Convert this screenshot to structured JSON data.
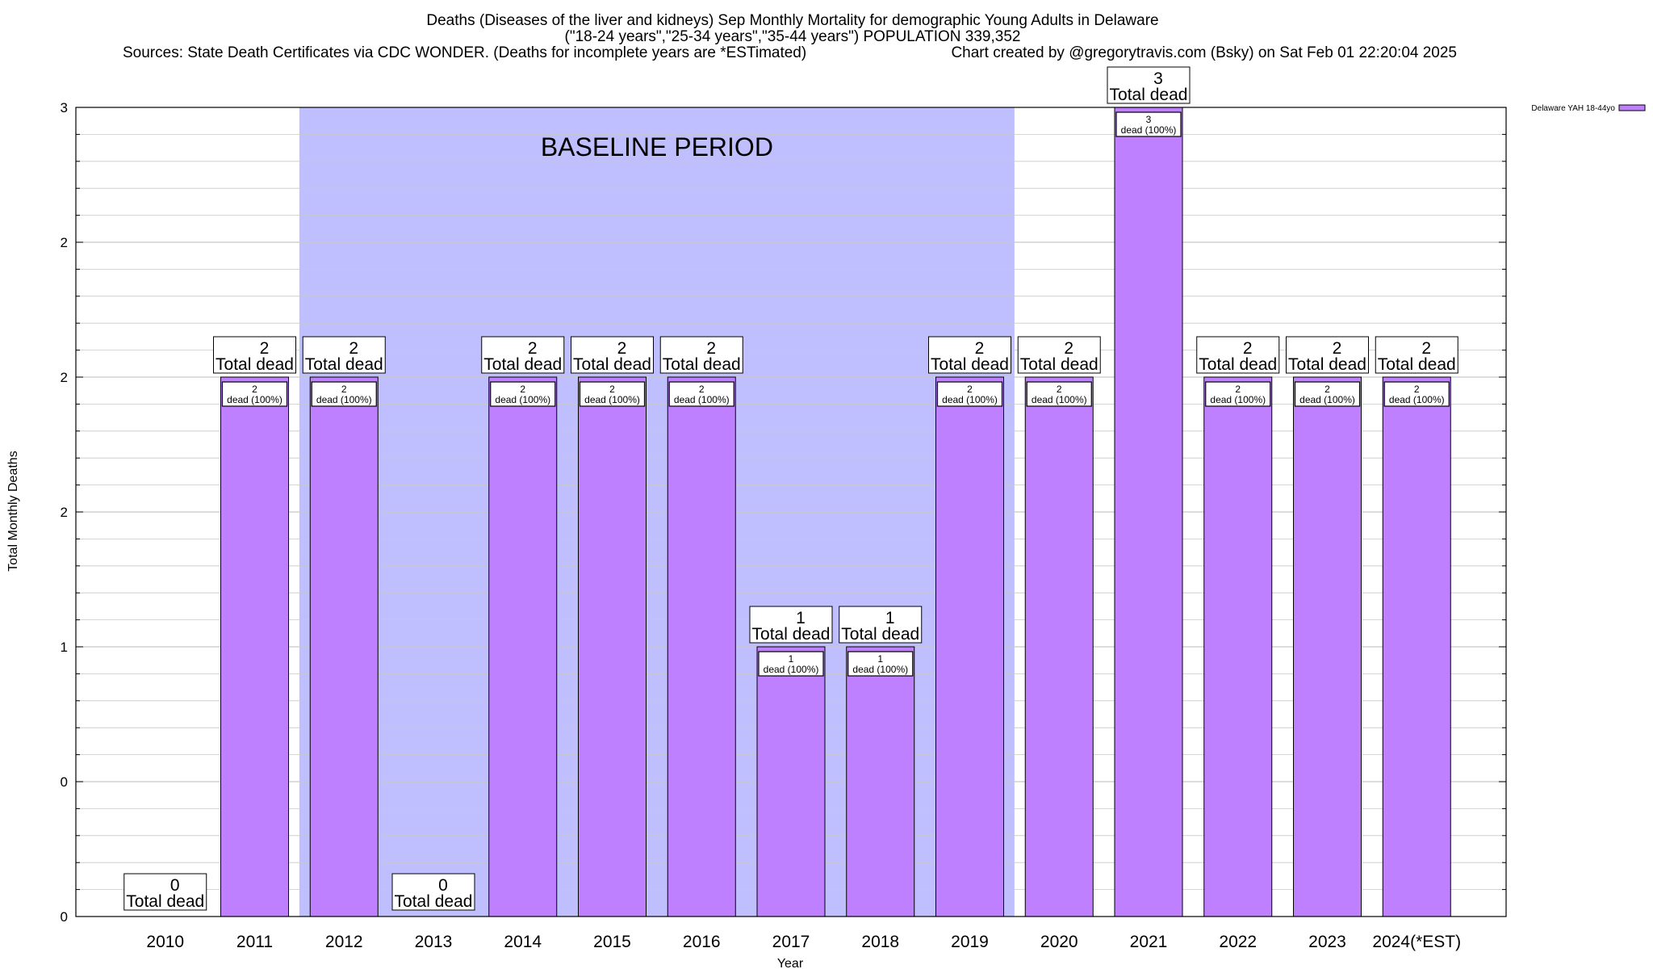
{
  "chart_data": {
    "type": "bar",
    "title_lines": [
      "Deaths (Diseases of the liver and kidneys) Sep Monthly Mortality for demographic Young Adults in Delaware",
      "(\"18-24 years\",\"25-34 years\",\"35-44 years\") POPULATION 339,352"
    ],
    "sources_text": "Sources: State Death Certificates via CDC WONDER. (Deaths for incomplete years are *ESTimated)",
    "credit_text": "Chart created by @gregorytravis.com (Bsky) on Sat Feb 01 22:20:04 2025",
    "xlabel": "Year",
    "ylabel": "Total Monthly Deaths",
    "ylim": [
      0,
      3
    ],
    "y_ticks": [
      {
        "value": 0,
        "label": "0"
      },
      {
        "value": 0.5,
        "label": "0"
      },
      {
        "value": 1,
        "label": "1"
      },
      {
        "value": 1.5,
        "label": "2"
      },
      {
        "value": 2,
        "label": "2"
      },
      {
        "value": 2.5,
        "label": "2"
      },
      {
        "value": 3,
        "label": "3"
      }
    ],
    "categories": [
      "2010",
      "2011",
      "2012",
      "2013",
      "2014",
      "2015",
      "2016",
      "2017",
      "2018",
      "2019",
      "2020",
      "2021",
      "2022",
      "2023",
      "2024(*EST)"
    ],
    "series": [
      {
        "name": "Delaware YAH 18-44yo",
        "color": "#bf80ff",
        "values": [
          0,
          2,
          2,
          0,
          2,
          2,
          2,
          1,
          1,
          2,
          2,
          3,
          2,
          2,
          2
        ],
        "plotted_values": [
          0,
          2,
          2,
          0,
          2,
          2,
          2,
          1,
          1,
          2,
          2,
          3,
          2,
          2,
          2
        ]
      }
    ],
    "total_label_suffix": "Total dead",
    "inner_label_suffix": "dead (100%)",
    "baseline": {
      "label": "BASELINE PERIOD",
      "from_category": "2012",
      "to_category": "2019",
      "color": "#bfbfff"
    },
    "grid": true,
    "legend_position": "top-right",
    "bar_color": "#bf80ff",
    "border_color": "#000000",
    "grid_color": "#c8c8c8"
  }
}
